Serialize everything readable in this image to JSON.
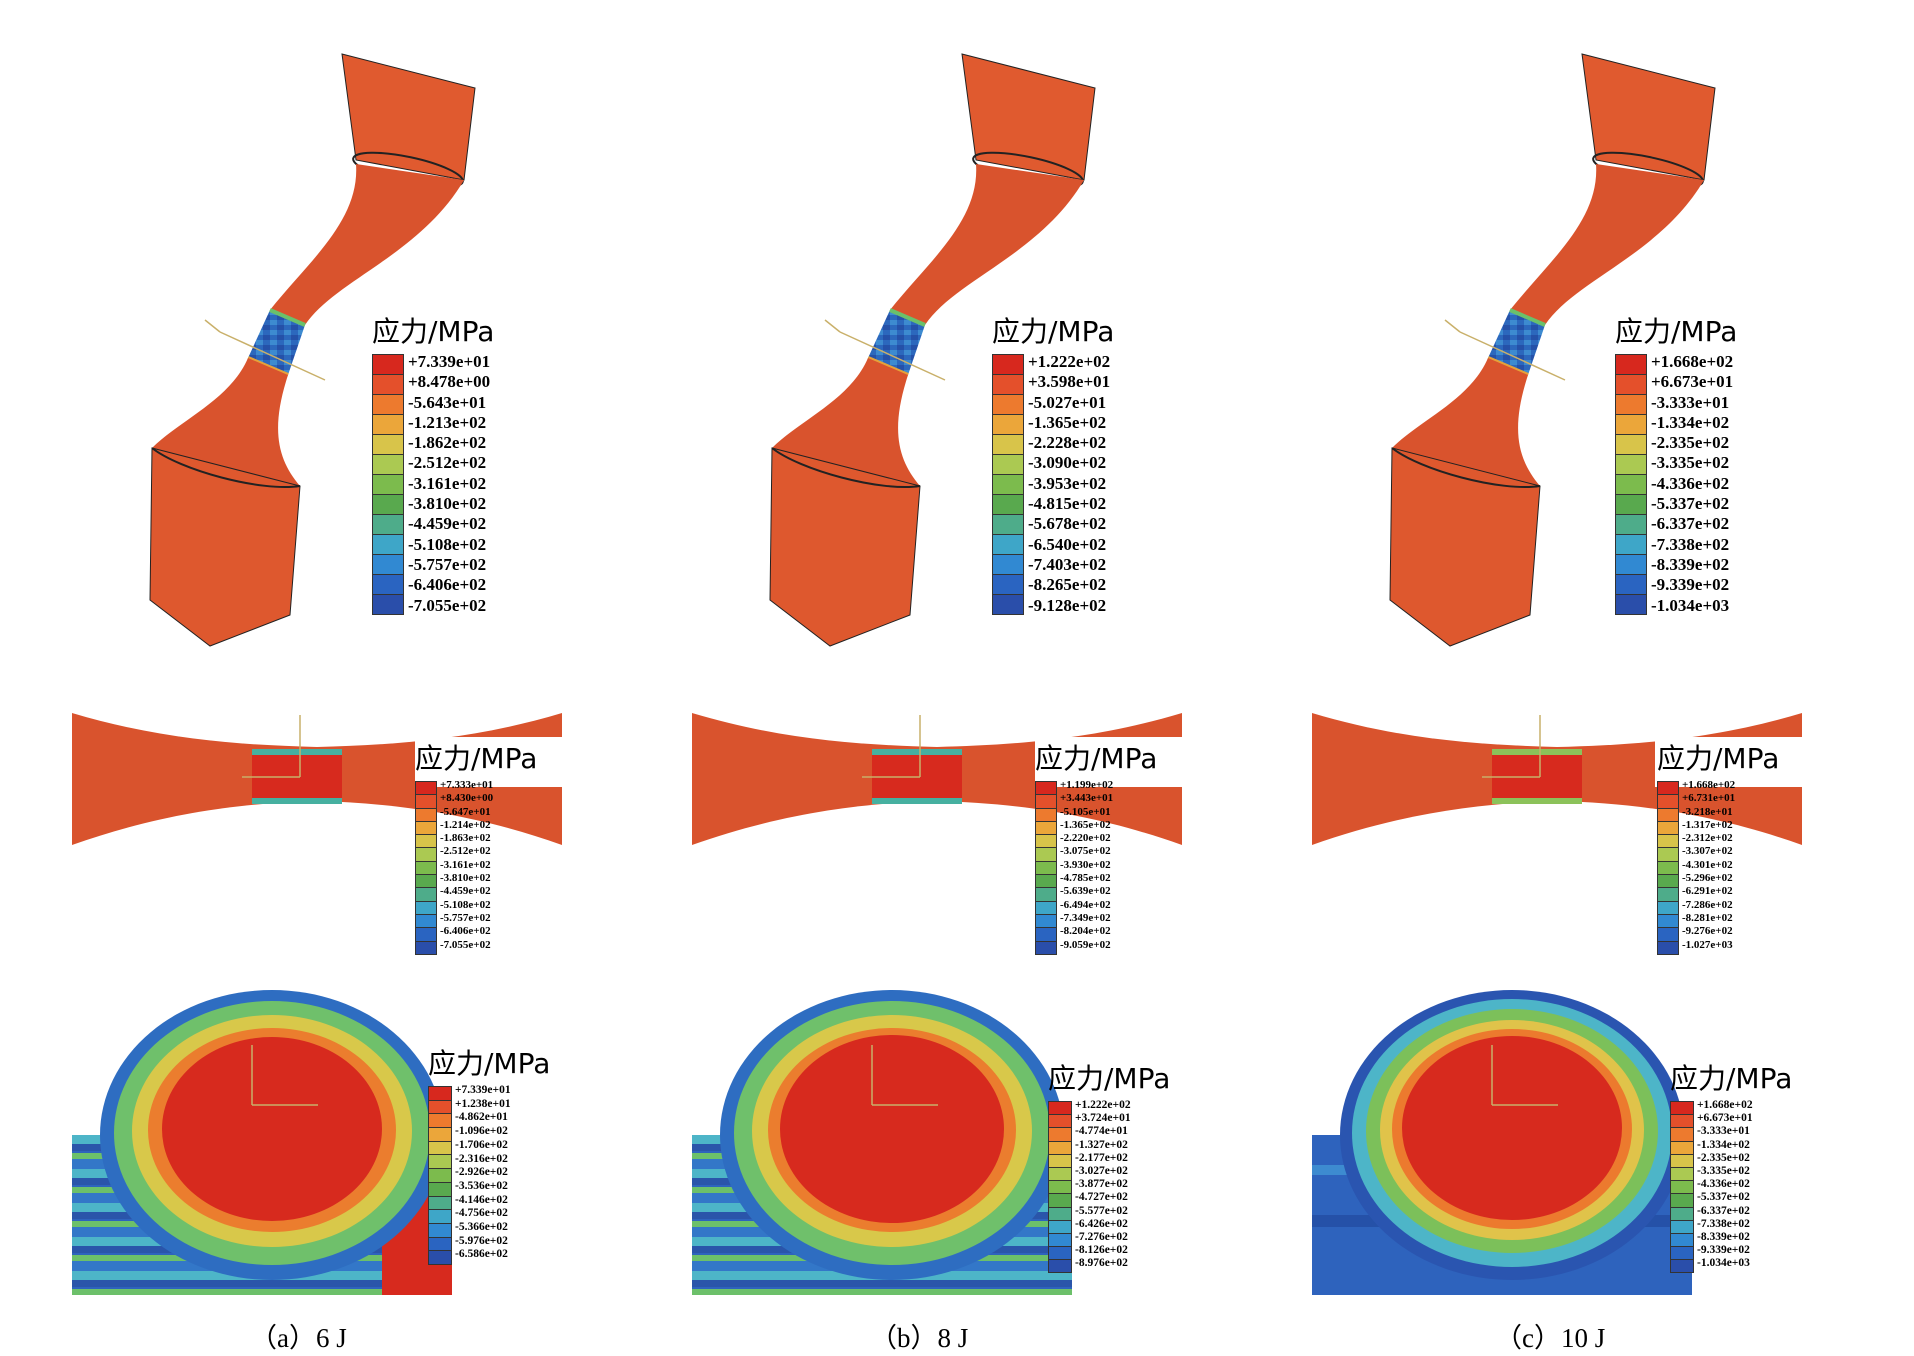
{
  "legend_colors": [
    "#d7281e",
    "#e4502b",
    "#ed7a2e",
    "#eba63a",
    "#d8c44a",
    "#abc952",
    "#7cbb4d",
    "#59a94e",
    "#4eac8a",
    "#3ea6c8",
    "#3189d2",
    "#2a64c1",
    "#2a4eaa"
  ],
  "geometry_colors": {
    "specimen": "#d9532d",
    "specimen_dark": "#b8421f",
    "hotspot": "#d72a1e",
    "band_blue": "#2e6fc0",
    "band_cyan": "#45b3d8"
  },
  "columns": [
    {
      "caption": "（a）6 J",
      "views": [
        {
          "title": "应力/MPa",
          "values": [
            "+7.339e+01",
            "+8.478e+00",
            "-5.643e+01",
            "-1.213e+02",
            "-1.862e+02",
            "-2.512e+02",
            "-3.161e+02",
            "-3.810e+02",
            "-4.459e+02",
            "-5.108e+02",
            "-5.757e+02",
            "-6.406e+02",
            "-7.055e+02"
          ]
        },
        {
          "title": "应力/MPa",
          "values": [
            "+7.333e+01",
            "+8.430e+00",
            "-5.647e+01",
            "-1.214e+02",
            "-1.863e+02",
            "-2.512e+02",
            "-3.161e+02",
            "-3.810e+02",
            "-4.459e+02",
            "-5.108e+02",
            "-5.757e+02",
            "-6.406e+02",
            "-7.055e+02"
          ]
        },
        {
          "title": "应力/MPa",
          "values": [
            "+7.339e+01",
            "+1.238e+01",
            "-4.862e+01",
            "-1.096e+02",
            "-1.706e+02",
            "-2.316e+02",
            "-2.926e+02",
            "-3.536e+02",
            "-4.146e+02",
            "-4.756e+02",
            "-5.366e+02",
            "-5.976e+02",
            "-6.586e+02"
          ]
        }
      ]
    },
    {
      "caption": "（b）8 J",
      "views": [
        {
          "title": "应力/MPa",
          "values": [
            "+1.222e+02",
            "+3.598e+01",
            "-5.027e+01",
            "-1.365e+02",
            "-2.228e+02",
            "-3.090e+02",
            "-3.953e+02",
            "-4.815e+02",
            "-5.678e+02",
            "-6.540e+02",
            "-7.403e+02",
            "-8.265e+02",
            "-9.128e+02"
          ]
        },
        {
          "title": "应力/MPa",
          "values": [
            "+1.199e+02",
            "+3.443e+01",
            "-5.105e+01",
            "-1.365e+02",
            "-2.220e+02",
            "-3.075e+02",
            "-3.930e+02",
            "-4.785e+02",
            "-5.639e+02",
            "-6.494e+02",
            "-7.349e+02",
            "-8.204e+02",
            "-9.059e+02"
          ]
        },
        {
          "title": "应力/MPa",
          "values": [
            "+1.222e+02",
            "+3.724e+01",
            "-4.774e+01",
            "-1.327e+02",
            "-2.177e+02",
            "-3.027e+02",
            "-3.877e+02",
            "-4.727e+02",
            "-5.577e+02",
            "-6.426e+02",
            "-7.276e+02",
            "-8.126e+02",
            "-8.976e+02"
          ]
        }
      ]
    },
    {
      "caption": "（c）10 J",
      "views": [
        {
          "title": "应力/MPa",
          "values": [
            "+1.668e+02",
            "+6.673e+01",
            "-3.333e+01",
            "-1.334e+02",
            "-2.335e+02",
            "-3.335e+02",
            "-4.336e+02",
            "-5.337e+02",
            "-6.337e+02",
            "-7.338e+02",
            "-8.339e+02",
            "-9.339e+02",
            "-1.034e+03"
          ]
        },
        {
          "title": "应力/MPa",
          "values": [
            "+1.668e+02",
            "+6.731e+01",
            "-3.218e+01",
            "-1.317e+02",
            "-2.312e+02",
            "-3.307e+02",
            "-4.301e+02",
            "-5.296e+02",
            "-6.291e+02",
            "-7.286e+02",
            "-8.281e+02",
            "-9.276e+02",
            "-1.027e+03"
          ]
        },
        {
          "title": "应力/MPa",
          "values": [
            "+1.668e+02",
            "+6.673e+01",
            "-3.333e+01",
            "-1.334e+02",
            "-2.335e+02",
            "-3.335e+02",
            "-4.336e+02",
            "-5.337e+02",
            "-6.337e+02",
            "-7.338e+02",
            "-8.339e+02",
            "-9.339e+02",
            "-1.034e+03"
          ]
        }
      ]
    }
  ]
}
